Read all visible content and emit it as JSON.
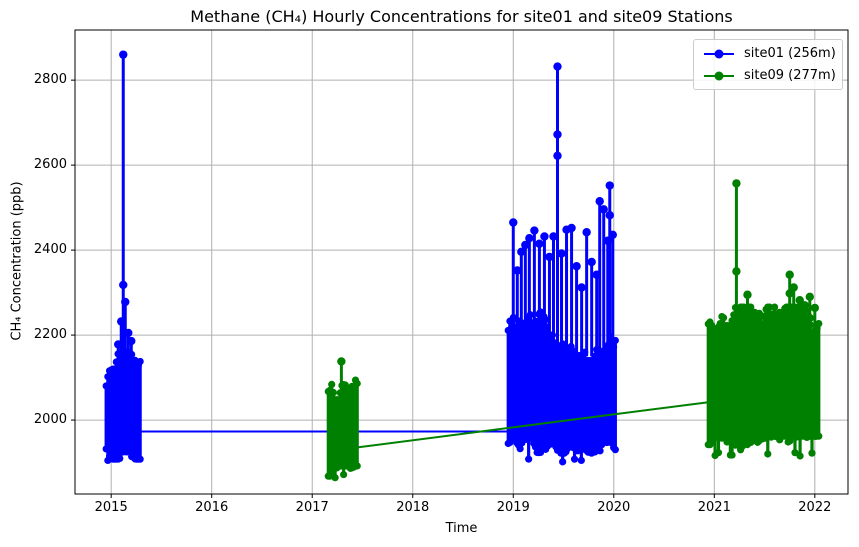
{
  "chart_data": {
    "type": "line",
    "title": "Methane (CH₄) Hourly Concentrations for site01 and site09 Stations",
    "xlabel": "Time",
    "ylabel": "CH₄ Concentration (ppb)",
    "xlim": [
      2014.64,
      2022.33
    ],
    "ylim": [
      1826,
      2918
    ],
    "xticks": [
      2015,
      2016,
      2017,
      2018,
      2019,
      2020,
      2021,
      2022
    ],
    "yticks": [
      2000,
      2200,
      2400,
      2600,
      2800
    ],
    "grid": true,
    "grid_color": "#b0b0b0",
    "background": "#ffffff",
    "legend": {
      "location": "upper right",
      "entries": [
        {
          "label": "site01 (256m)",
          "color": "#0000ff"
        },
        {
          "label": "site09 (277m)",
          "color": "#008000"
        }
      ]
    },
    "series": [
      {
        "name": "site01 (256m)",
        "color": "#0000ff",
        "marker": "o",
        "line_style": "solid",
        "connector": {
          "x1": 2015.29,
          "y1": 1973,
          "x2": 2018.95,
          "y2": 1973
        },
        "clusters": [
          {
            "x_start": 2014.95,
            "x_end": 2015.29,
            "top_range": [
              2040,
              2160
            ],
            "bottom_range": [
              1908,
              1944
            ],
            "dip_y": 1903,
            "dip_p": 0.12,
            "spikes": [
              {
                "x": 2015.12,
                "y": 2860,
                "mids": [
                  2318
                ]
              },
              {
                "x": 2015.14,
                "y": 2278
              },
              {
                "x": 2015.1,
                "y": 2232
              },
              {
                "x": 2015.17,
                "y": 2205
              },
              {
                "x": 2015.07,
                "y": 2178
              },
              {
                "x": 2015.2,
                "y": 2186
              }
            ]
          },
          {
            "x_start": 2018.95,
            "x_end": 2020.03,
            "top_range": [
              2140,
              2262
            ],
            "bottom_range": [
              1922,
              1958
            ],
            "dip_y": 1897,
            "dip_p": 0.15,
            "spikes": [
              {
                "x": 2019.0,
                "y": 2465
              },
              {
                "x": 2019.04,
                "y": 2352
              },
              {
                "x": 2019.08,
                "y": 2396
              },
              {
                "x": 2019.12,
                "y": 2412
              },
              {
                "x": 2019.16,
                "y": 2428
              },
              {
                "x": 2019.21,
                "y": 2446
              },
              {
                "x": 2019.26,
                "y": 2415
              },
              {
                "x": 2019.31,
                "y": 2432
              },
              {
                "x": 2019.36,
                "y": 2384
              },
              {
                "x": 2019.4,
                "y": 2432
              },
              {
                "x": 2019.44,
                "y": 2832,
                "mids": [
                  2672,
                  2622
                ]
              },
              {
                "x": 2019.48,
                "y": 2392
              },
              {
                "x": 2019.53,
                "y": 2448
              },
              {
                "x": 2019.58,
                "y": 2452
              },
              {
                "x": 2019.63,
                "y": 2362
              },
              {
                "x": 2019.68,
                "y": 2312
              },
              {
                "x": 2019.73,
                "y": 2442
              },
              {
                "x": 2019.78,
                "y": 2372
              },
              {
                "x": 2019.83,
                "y": 2342
              },
              {
                "x": 2019.86,
                "y": 2515
              },
              {
                "x": 2019.9,
                "y": 2496
              },
              {
                "x": 2019.94,
                "y": 2422
              },
              {
                "x": 2019.96,
                "y": 2552,
                "mids": [
                  2482
                ]
              },
              {
                "x": 2019.99,
                "y": 2436
              }
            ]
          }
        ]
      },
      {
        "name": "site09 (277m)",
        "color": "#008000",
        "marker": "o",
        "line_style": "solid",
        "connector": {
          "x1": 2017.46,
          "y1": 1936,
          "x2": 2020.94,
          "y2": 2042
        },
        "clusters": [
          {
            "x_start": 2017.16,
            "x_end": 2017.46,
            "top_range": [
              2048,
              2102
            ],
            "bottom_range": [
              1868,
              1892
            ],
            "dip_y": 1862,
            "dip_p": 0.1,
            "spikes": [
              {
                "x": 2017.29,
                "y": 2138
              }
            ]
          },
          {
            "x_start": 2020.94,
            "x_end": 2022.05,
            "top_range": [
              2148,
              2266
            ],
            "bottom_range": [
              1930,
              1962
            ],
            "dip_y": 1912,
            "dip_p": 0.15,
            "spikes": [
              {
                "x": 2021.02,
                "y": 2212
              },
              {
                "x": 2021.22,
                "y": 2557,
                "mids": [
                  2350
                ]
              },
              {
                "x": 2021.33,
                "y": 2295
              },
              {
                "x": 2021.4,
                "y": 2252
              },
              {
                "x": 2021.55,
                "y": 2244
              },
              {
                "x": 2021.65,
                "y": 2252
              },
              {
                "x": 2021.75,
                "y": 2342,
                "mids": [
                  2298
                ]
              },
              {
                "x": 2021.79,
                "y": 2312
              },
              {
                "x": 2021.85,
                "y": 2282
              },
              {
                "x": 2021.9,
                "y": 2270
              },
              {
                "x": 2021.95,
                "y": 2290,
                "mids": [
                  2240
                ]
              },
              {
                "x": 2022.0,
                "y": 2264
              }
            ]
          }
        ]
      }
    ]
  }
}
